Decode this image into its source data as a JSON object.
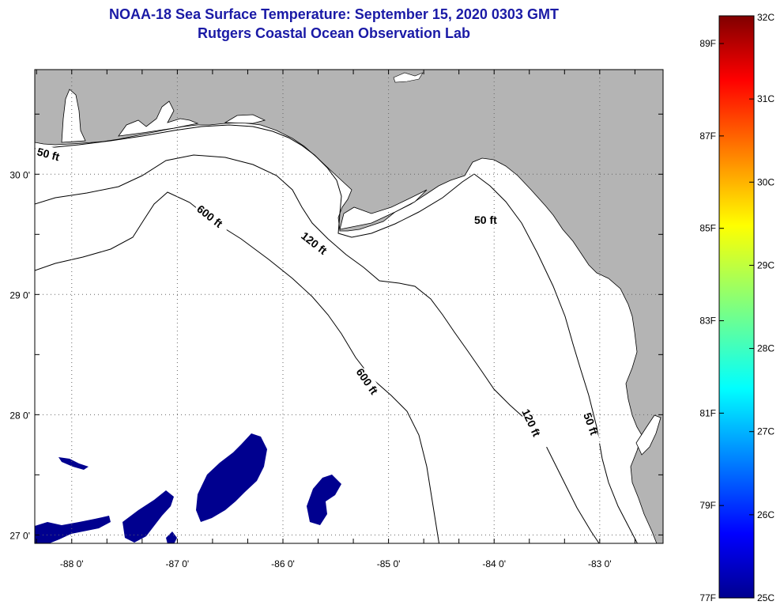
{
  "header": {
    "title": "NOAA-18 Sea Surface Temperature:  September 15, 2020 0303 GMT",
    "subtitle": "Rutgers Coastal Ocean Observation Lab"
  },
  "map": {
    "lon_range": [
      -88.35,
      -82.4
    ],
    "lat_range": [
      26.93,
      30.87
    ],
    "lon_ticks": [
      -88,
      -87,
      -86,
      -85,
      -84,
      -83
    ],
    "lat_ticks": [
      27,
      28,
      29,
      30
    ],
    "lon_tick_labels": [
      "-88 0'",
      "-87 0'",
      "-86 0'",
      "-85 0'",
      "-84 0'",
      "-83 0'"
    ],
    "lat_tick_labels": [
      "27 0'",
      "28 0'",
      "29 0'",
      "30 0'"
    ],
    "land_color": "#b4b4b4",
    "ocean_color": "#ffffff",
    "cold_patch_color": "#00008f",
    "contours": [
      {
        "label": "50 ft"
      },
      {
        "label": "120 ft"
      },
      {
        "label": "600 ft"
      }
    ],
    "contour_labels": [
      "50 ft",
      "50 ft",
      "50 ft",
      "120 ft",
      "120 ft",
      "600 ft",
      "600 ft"
    ]
  },
  "colorbar": {
    "celsius_range": [
      25,
      32
    ],
    "fahrenheit_range": [
      77,
      89.6
    ],
    "celsius_labels": [
      "32C",
      "31C",
      "30C",
      "29C",
      "28C",
      "27C",
      "26C",
      "25C"
    ],
    "fahrenheit_labels": [
      "89F",
      "87F",
      "85F",
      "83F",
      "81F",
      "79F",
      "77F"
    ],
    "colormap": "jet"
  }
}
